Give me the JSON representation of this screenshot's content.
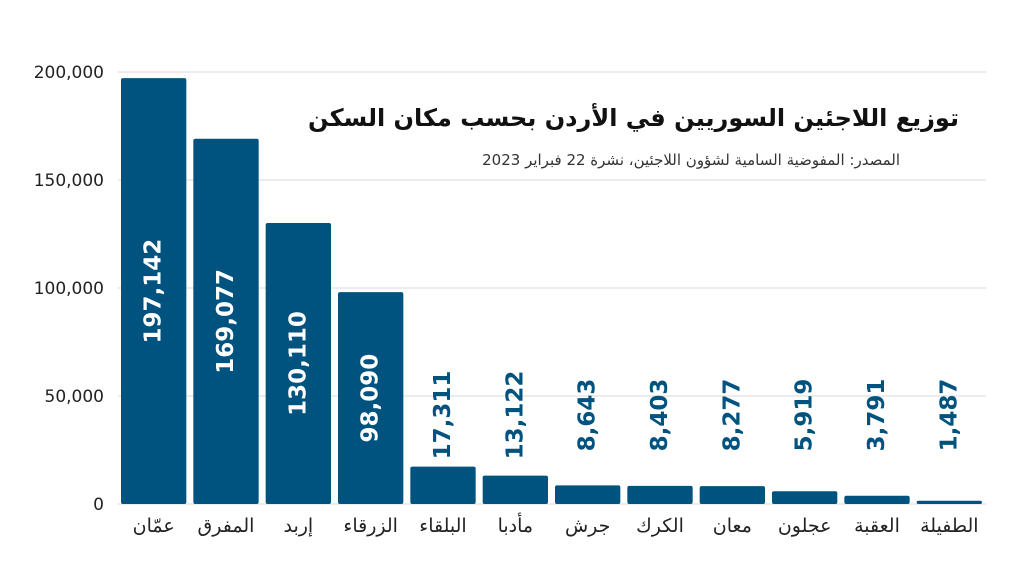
{
  "chart_data": {
    "type": "bar",
    "title": "توزيع اللاجئين السوريين في الأردن بحسب مكان السكن",
    "subtitle": "المصدر: المفوضية السامية لشؤون اللاجئين، نشرة 22 فبراير 2023",
    "categories": [
      "عمّان",
      "المفرق",
      "إربد",
      "الزرقاء",
      "البلقاء",
      "مأدبا",
      "جرش",
      "الكرك",
      "معان",
      "عجلون",
      "العقبة",
      "الطفيلة"
    ],
    "values": [
      197142,
      169077,
      130110,
      98090,
      17311,
      13122,
      8643,
      8403,
      8277,
      5919,
      3791,
      1487
    ],
    "value_labels": [
      "197,142",
      "169,077",
      "130,110",
      "98,090",
      "17,311",
      "13,122",
      "8,643",
      "8,403",
      "8,277",
      "5,919",
      "3,791",
      "1,487"
    ],
    "y_ticks": [
      0,
      50000,
      100000,
      150000,
      200000
    ],
    "y_tick_labels": [
      "0",
      "50,000",
      "100,000",
      "150,000",
      "200,000"
    ],
    "ylim": [
      0,
      200000
    ],
    "grid": true,
    "colors": {
      "bar": "#00527f",
      "grid": "#d9d9d9",
      "label_inside": "#ffffff",
      "label_outside": "#00527f"
    }
  }
}
